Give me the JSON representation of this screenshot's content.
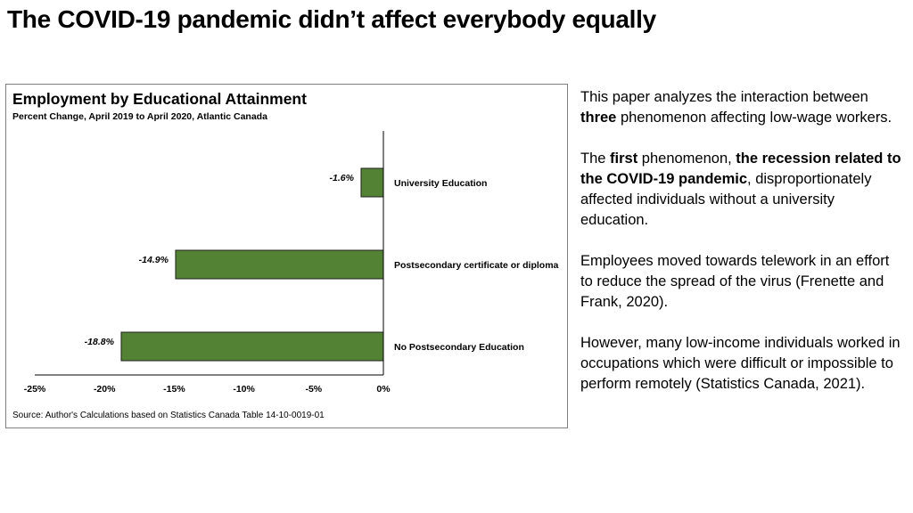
{
  "slide": {
    "title": "The COVID-19 pandemic didn’t affect everybody equally"
  },
  "chart_data": {
    "type": "bar",
    "orientation": "horizontal",
    "title": "Employment by Educational Attainment",
    "subtitle": "Percent Change, April 2019 to April 2020, Atlantic Canada",
    "categories": [
      "University Education",
      "Postsecondary certificate or diploma",
      "No Postsecondary Education"
    ],
    "values": [
      -1.6,
      -14.9,
      -18.8
    ],
    "data_labels": [
      "-1.6%",
      "-14.9%",
      "-18.8%"
    ],
    "xlim": [
      -25,
      0
    ],
    "x_ticks": [
      -25,
      -20,
      -15,
      -10,
      -5,
      0
    ],
    "x_tick_labels": [
      "-25%",
      "-20%",
      "-15%",
      "-10%",
      "-5%",
      "0%"
    ],
    "bar_color": "#548235",
    "grid": false,
    "legend": "none",
    "source": "Source: Author's Calculations based on Statistics Canada Table 14-10-0019-01"
  },
  "side_text": {
    "p1": {
      "before": "This paper analyzes the interaction between ",
      "bold": "three",
      "after": " phenomenon affecting low-wage workers."
    },
    "p2": {
      "before": "The ",
      "bold1": "first",
      "middle": " phenomenon, ",
      "bold2": "the recession related to the COVID-19 pandemic",
      "after": ", disproportionately affected individuals without a university education."
    },
    "p3": "Employees moved towards telework in an effort to reduce the spread of the virus (Frenette and Frank, 2020).",
    "p4": "However, many low-income individuals worked in occupations which were difficult or impossible to perform remotely (Statistics Canada, 2021)."
  }
}
